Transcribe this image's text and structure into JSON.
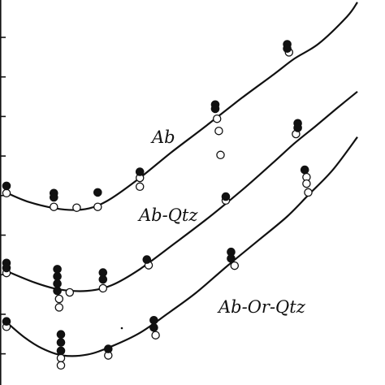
{
  "chart_data": {
    "type": "scatter",
    "title": "",
    "xlabel": "",
    "ylabel": "",
    "xlim": [
      0,
      100
    ],
    "ylim": [
      0,
      100
    ],
    "grid": false,
    "legend": "none",
    "colors": {
      "ink": "#111111",
      "background": "#ffffff"
    },
    "marker_legend": {
      "filled": "filled circle",
      "open": "open circle"
    },
    "series": [
      {
        "label": "Ab",
        "curve": [
          [
            0,
            49.5
          ],
          [
            6,
            47.2
          ],
          [
            14,
            45.4
          ],
          [
            20,
            45.0
          ],
          [
            25,
            45.8
          ],
          [
            30,
            48.1
          ],
          [
            38,
            53.4
          ],
          [
            47,
            60.1
          ],
          [
            57,
            67.1
          ],
          [
            67,
            74.3
          ],
          [
            76,
            80.4
          ],
          [
            82,
            84.6
          ],
          [
            89,
            88.6
          ],
          [
            97,
            95.6
          ],
          [
            100,
            99.4
          ]
        ],
        "filled": [
          [
            0,
            51.3
          ],
          [
            13.5,
            49.4
          ],
          [
            13.5,
            48.3
          ],
          [
            26,
            49.6
          ],
          [
            38,
            55.0
          ],
          [
            59.5,
            72.6
          ],
          [
            59.5,
            71.5
          ],
          [
            80,
            88.4
          ],
          [
            80,
            87.3
          ]
        ],
        "open": [
          [
            0,
            49.4
          ],
          [
            13.5,
            45.8
          ],
          [
            20,
            45.6
          ],
          [
            26,
            45.8
          ],
          [
            38,
            53.4
          ],
          [
            38,
            51.1
          ],
          [
            60,
            68.9
          ],
          [
            60.5,
            65.7
          ],
          [
            61,
            59.4
          ],
          [
            80.5,
            86.3
          ]
        ]
      },
      {
        "label": "Ab-Qtz",
        "curve": [
          [
            0,
            29.0
          ],
          [
            8,
            26.0
          ],
          [
            15,
            24.2
          ],
          [
            23,
            23.8
          ],
          [
            30,
            25.3
          ],
          [
            38,
            29.5
          ],
          [
            48,
            36.3
          ],
          [
            58,
            43.3
          ],
          [
            68,
            50.9
          ],
          [
            76,
            57.4
          ],
          [
            82,
            62.4
          ],
          [
            88,
            66.9
          ],
          [
            94,
            71.5
          ],
          [
            100,
            76.0
          ]
        ],
        "filled": [
          [
            0,
            31.1
          ],
          [
            0,
            29.8
          ],
          [
            14.5,
            29.5
          ],
          [
            14.5,
            27.6
          ],
          [
            14.5,
            25.7
          ],
          [
            14.5,
            23.8
          ],
          [
            27.5,
            28.6
          ],
          [
            27.5,
            26.8
          ],
          [
            40,
            32.0
          ],
          [
            62.5,
            48.5
          ],
          [
            83,
            67.7
          ],
          [
            83,
            66.5
          ]
        ],
        "open": [
          [
            0,
            28.5
          ],
          [
            15,
            21.7
          ],
          [
            15,
            19.5
          ],
          [
            18,
            23.4
          ],
          [
            27.5,
            24.5
          ],
          [
            40.5,
            30.5
          ],
          [
            62.5,
            47.5
          ],
          [
            82.5,
            64.9
          ]
        ]
      },
      {
        "label": "Ab-Or-Qtz",
        "curve": [
          [
            0,
            15.6
          ],
          [
            5,
            11.7
          ],
          [
            10,
            8.8
          ],
          [
            16,
            6.9
          ],
          [
            23,
            7.1
          ],
          [
            30,
            9.3
          ],
          [
            38,
            12.8
          ],
          [
            46,
            17.9
          ],
          [
            54,
            23.3
          ],
          [
            63,
            30.4
          ],
          [
            72,
            37.2
          ],
          [
            80,
            43.3
          ],
          [
            86,
            48.9
          ],
          [
            93,
            55.5
          ],
          [
            100,
            64.1
          ]
        ],
        "filled": [
          [
            0,
            15.8
          ],
          [
            15.5,
            12.4
          ],
          [
            15.5,
            10.3
          ],
          [
            15.5,
            8.1
          ],
          [
            29,
            8.6
          ],
          [
            42,
            16.1
          ],
          [
            42,
            14.2
          ],
          [
            64,
            34.0
          ],
          [
            64,
            32.3
          ],
          [
            85,
            55.5
          ]
        ],
        "open": [
          [
            0,
            14.4
          ],
          [
            15.5,
            6.2
          ],
          [
            15.5,
            4.3
          ],
          [
            29,
            6.9
          ],
          [
            42.5,
            12.2
          ],
          [
            65,
            30.4
          ],
          [
            85.5,
            53.6
          ],
          [
            85.5,
            51.9
          ],
          [
            86,
            49.6
          ]
        ]
      }
    ]
  }
}
